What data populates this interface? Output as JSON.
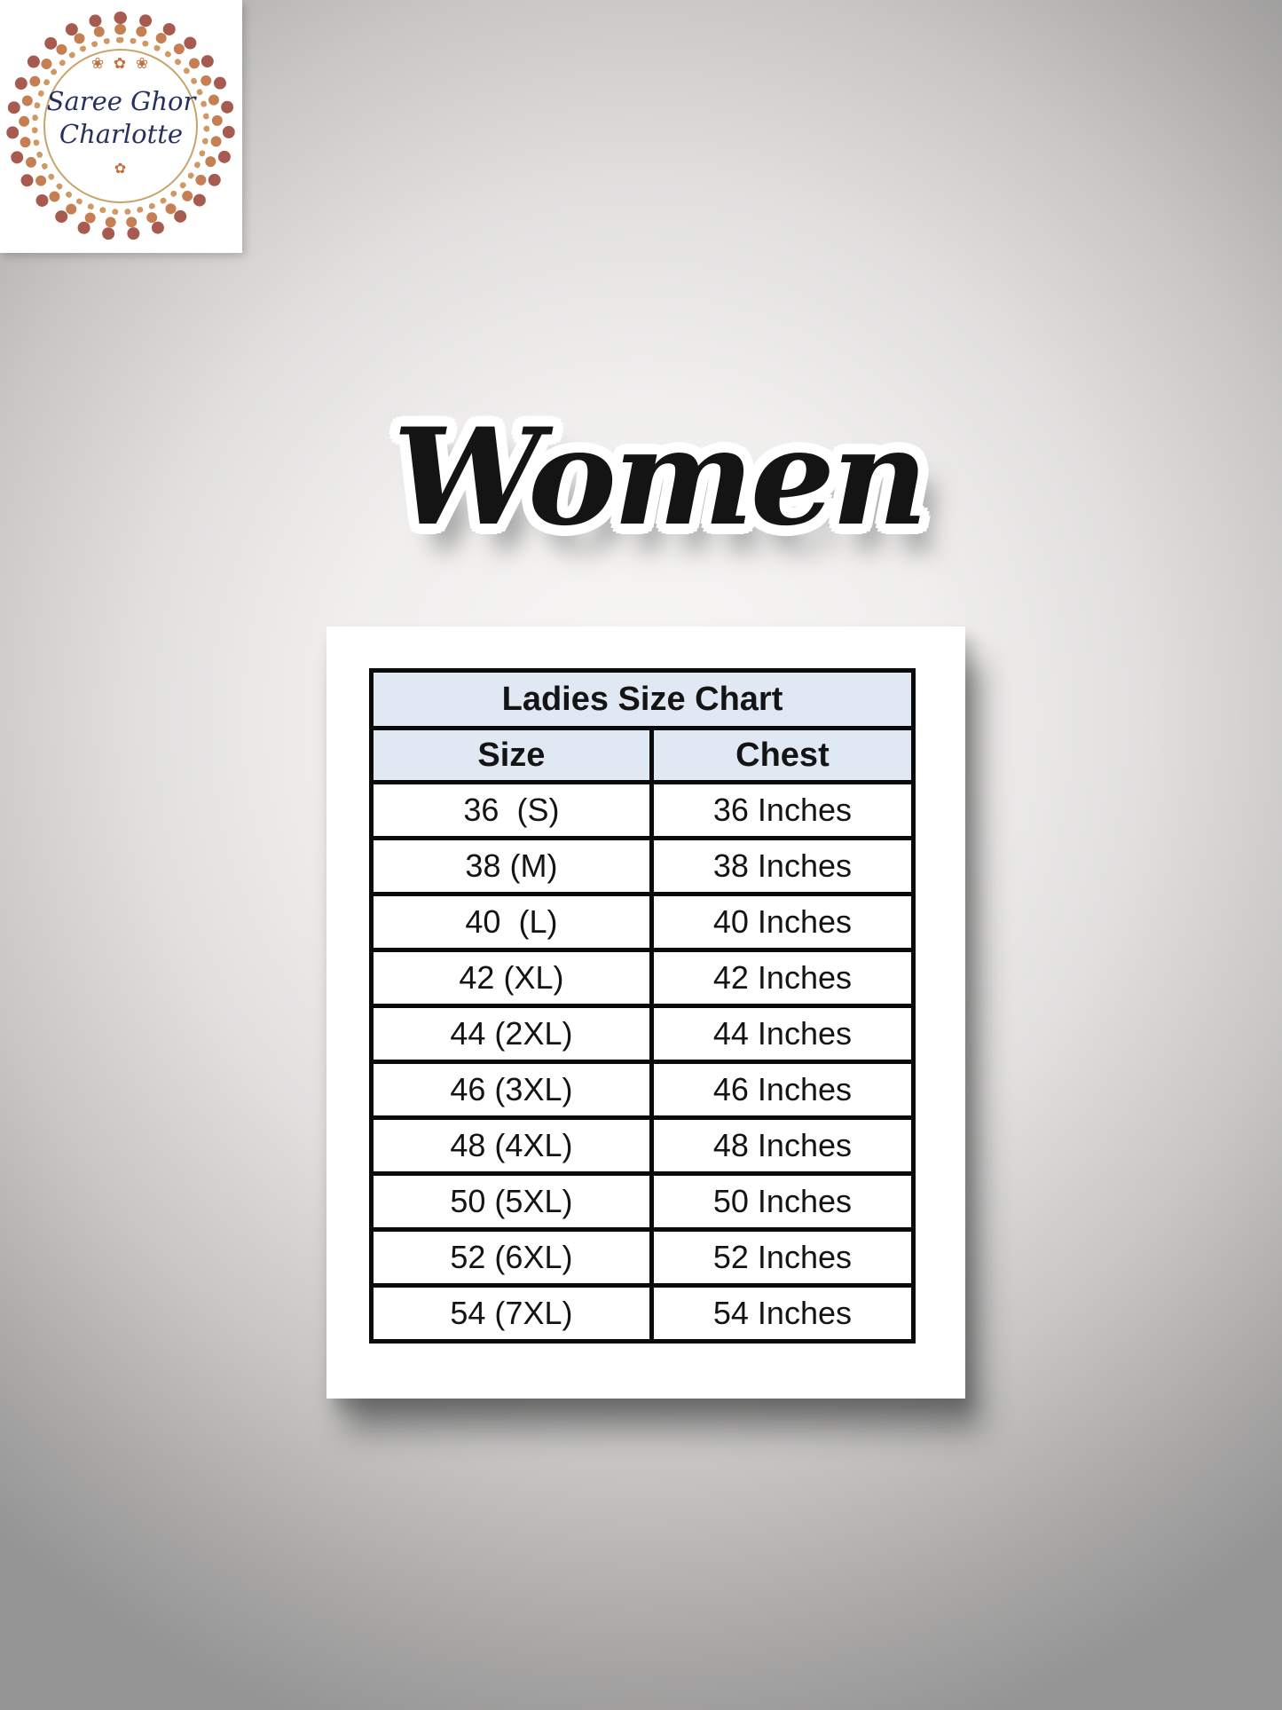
{
  "logo": {
    "name_line1": "Saree Ghor",
    "name_line2": "Charlotte",
    "ornament_top": "❀ ✿ ❀",
    "ornament_bottom": "✿",
    "text_color": "#26315f",
    "ring_outer_color": "#9e4a3e",
    "ring_mid_color": "#bf7240",
    "ring_inner_color": "#c9a46a"
  },
  "heading": {
    "text": "Women",
    "text_color": "#141414",
    "sticker_outline_color": "#ffffff"
  },
  "size_chart": {
    "title": "Ladies Size Chart",
    "columns": {
      "size": "Size",
      "chest": "Chest"
    },
    "rows": [
      {
        "size": "36  (S)",
        "chest": "36 Inches"
      },
      {
        "size": "38 (M)",
        "chest": "38 Inches"
      },
      {
        "size": "40  (L)",
        "chest": "40 Inches"
      },
      {
        "size": "42 (XL)",
        "chest": "42 Inches"
      },
      {
        "size": "44 (2XL)",
        "chest": "44 Inches"
      },
      {
        "size": "46 (3XL)",
        "chest": "46 Inches"
      },
      {
        "size": "48 (4XL)",
        "chest": "48 Inches"
      },
      {
        "size": "50 (5XL)",
        "chest": "50 Inches"
      },
      {
        "size": "52 (6XL)",
        "chest": "52 Inches"
      },
      {
        "size": "54 (7XL)",
        "chest": "54 Inches"
      }
    ],
    "header_bg": "#dfe8f3",
    "border_color": "#0a0a0a"
  }
}
